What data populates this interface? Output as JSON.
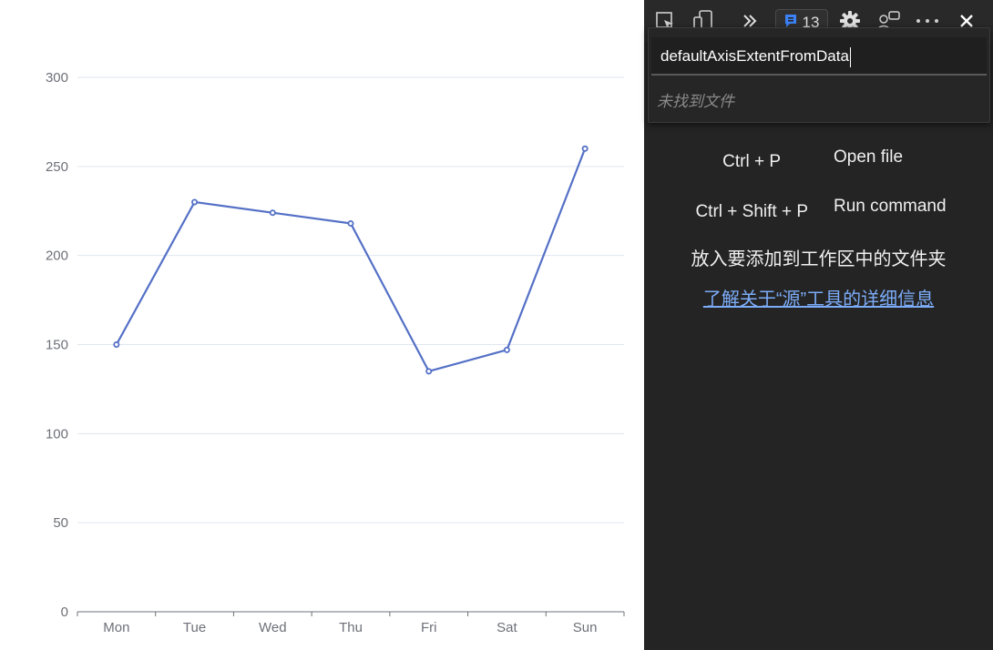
{
  "chart_data": {
    "type": "line",
    "categories": [
      "Mon",
      "Tue",
      "Wed",
      "Thu",
      "Fri",
      "Sat",
      "Sun"
    ],
    "series": [
      {
        "values": [
          150,
          230,
          224,
          218,
          135,
          147,
          260
        ]
      }
    ],
    "yticks": [
      "0",
      "50",
      "100",
      "150",
      "200",
      "250",
      "300"
    ],
    "ylim": [
      0,
      300
    ],
    "grid": true,
    "color": "#5470c6",
    "title": "",
    "xlabel": "",
    "ylabel": ""
  },
  "devtools": {
    "toolbar": {
      "icons": [
        "inspect-element-icon",
        "device-toolbar-icon",
        "more-tabs-icon",
        "issues-icon",
        "settings-icon",
        "feedback-icon",
        "more-options-icon",
        "close-icon"
      ],
      "issues_count": "13",
      "accent": "#3b82f6"
    },
    "quick_open": {
      "query": "defaultAxisExtentFromData",
      "empty_message": "未找到文件"
    },
    "shortcuts": [
      {
        "keys": "Ctrl + P",
        "action": "Open file"
      },
      {
        "keys": "Ctrl + Shift + P",
        "action": "Run command"
      }
    ],
    "drop_hint": "放入要添加到工作区中的文件夹",
    "learn_more": "了解关于“源”工具的详细信息",
    "link_color": "#7cacf8"
  }
}
